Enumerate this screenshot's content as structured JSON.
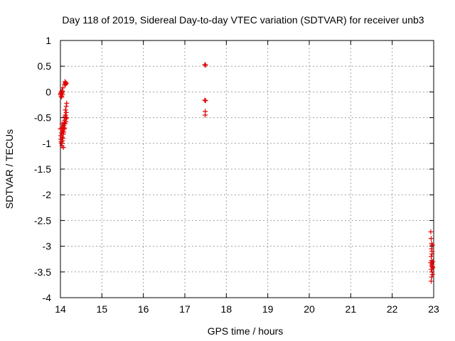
{
  "chart_data": {
    "type": "scatter",
    "title": "Day 118 of 2019, Sidereal Day-to-day VTEC variation (SDTVAR) for receiver unb3",
    "xlabel": "GPS time / hours",
    "ylabel": "SDTVAR / TECUs",
    "xlim": [
      14,
      23
    ],
    "ylim": [
      -4,
      1
    ],
    "xticks": [
      14,
      15,
      16,
      17,
      18,
      19,
      20,
      21,
      22,
      23
    ],
    "yticks": [
      1,
      0.5,
      0,
      -0.5,
      -1,
      -1.5,
      -2,
      -2.5,
      -3,
      -3.5,
      -4
    ],
    "xtick_labels": [
      "14",
      "15",
      "16",
      "17",
      "18",
      "19",
      "20",
      "21",
      "22",
      "23"
    ],
    "ytick_labels": [
      "1",
      "0.5",
      "0",
      "-0.5",
      "-1",
      "-1.5",
      "-2",
      "-2.5",
      "-3",
      "-3.5",
      "-4"
    ],
    "grid": true,
    "marker": "+",
    "color": "#e00000",
    "series": [
      {
        "name": "SDTVAR",
        "points": [
          [
            14.0,
            -0.05
          ],
          [
            14.01,
            -0.03
          ],
          [
            14.02,
            -0.08
          ],
          [
            14.02,
            0.0
          ],
          [
            14.03,
            -0.02
          ],
          [
            14.04,
            0.02
          ],
          [
            14.05,
            -0.05
          ],
          [
            14.06,
            0.08
          ],
          [
            14.03,
            -0.1
          ],
          [
            14.1,
            0.15
          ],
          [
            14.11,
            0.2
          ],
          [
            14.12,
            0.18
          ],
          [
            14.13,
            0.16
          ],
          [
            14.14,
            0.17
          ],
          [
            14.12,
            0.14
          ],
          [
            14.0,
            -0.72
          ],
          [
            14.01,
            -0.85
          ],
          [
            14.01,
            -0.92
          ],
          [
            14.02,
            -0.97
          ],
          [
            14.02,
            -1.0
          ],
          [
            14.03,
            -0.8
          ],
          [
            14.03,
            -0.7
          ],
          [
            14.04,
            -0.88
          ],
          [
            14.04,
            -1.05
          ],
          [
            14.05,
            -0.95
          ],
          [
            14.05,
            -0.75
          ],
          [
            14.06,
            -0.68
          ],
          [
            14.06,
            -0.9
          ],
          [
            14.07,
            -0.82
          ],
          [
            14.07,
            -1.08
          ],
          [
            14.08,
            -0.78
          ],
          [
            14.08,
            -0.65
          ],
          [
            14.09,
            -0.72
          ],
          [
            14.09,
            -0.6
          ],
          [
            14.1,
            -0.7
          ],
          [
            14.1,
            -0.55
          ],
          [
            14.11,
            -0.48
          ],
          [
            14.11,
            -0.62
          ],
          [
            14.12,
            -0.45
          ],
          [
            14.12,
            -0.35
          ],
          [
            14.13,
            -0.52
          ],
          [
            14.13,
            -0.58
          ],
          [
            14.14,
            -0.28
          ],
          [
            14.14,
            -0.4
          ],
          [
            14.15,
            -0.22
          ],
          [
            14.15,
            -0.5
          ],
          [
            14.04,
            -0.62
          ],
          [
            14.06,
            -0.78
          ],
          [
            17.48,
            0.53
          ],
          [
            17.5,
            0.52
          ],
          [
            17.48,
            -0.16
          ],
          [
            17.5,
            -0.17
          ],
          [
            17.49,
            -0.38
          ],
          [
            17.49,
            -0.45
          ],
          [
            22.93,
            -2.72
          ],
          [
            22.94,
            -2.85
          ],
          [
            22.95,
            -2.95
          ],
          [
            22.95,
            -3.05
          ],
          [
            22.96,
            -3.15
          ],
          [
            22.94,
            -3.2
          ],
          [
            22.95,
            -3.28
          ],
          [
            22.93,
            -3.32
          ],
          [
            22.96,
            -3.35
          ],
          [
            22.97,
            -3.4
          ],
          [
            22.94,
            -3.45
          ],
          [
            22.95,
            -3.38
          ],
          [
            22.96,
            -3.5
          ],
          [
            22.97,
            -3.55
          ],
          [
            22.95,
            -3.6
          ],
          [
            22.94,
            -3.68
          ],
          [
            22.98,
            -3.42
          ],
          [
            22.98,
            -3.3
          ],
          [
            22.97,
            -2.98
          ],
          [
            22.96,
            -3.1
          ]
        ]
      }
    ]
  }
}
